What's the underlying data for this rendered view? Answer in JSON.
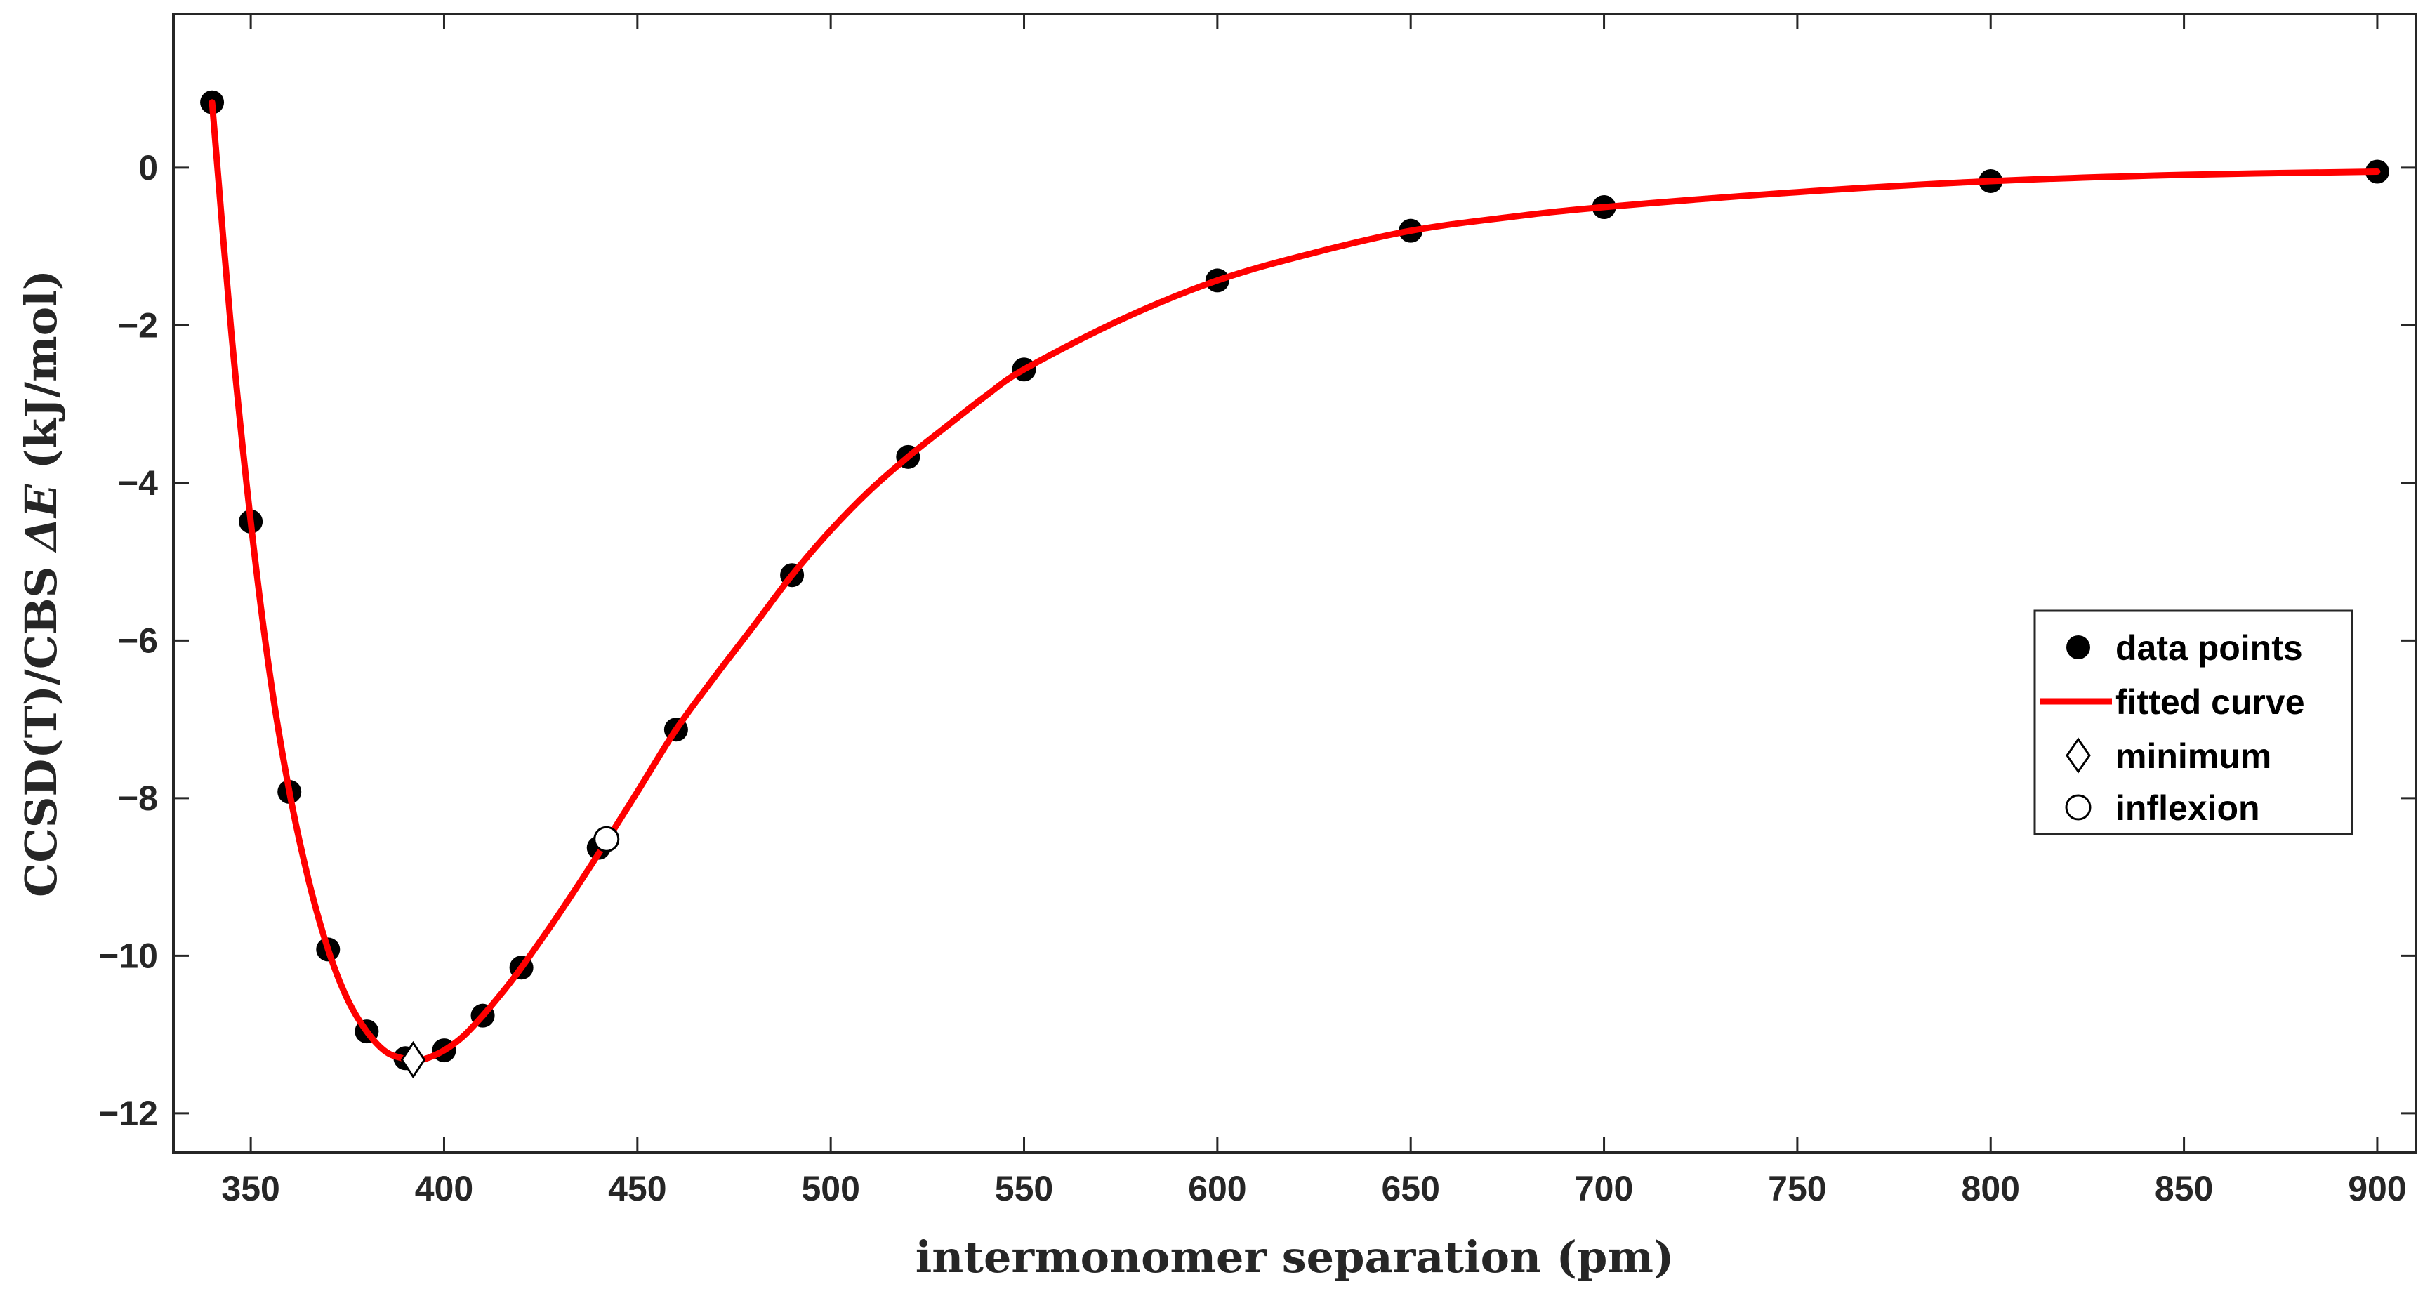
{
  "chart_data": {
    "type": "scatter",
    "xlabel": "intermonomer separation (pm)",
    "ylabel_prefix": "CCSD(T)/CBS ",
    "ylabel_symbol": "ΔE",
    "ylabel_suffix": " (kJ/mol)",
    "xlim": [
      330,
      910
    ],
    "ylim": [
      -12.5,
      1.95
    ],
    "xticks": [
      350,
      400,
      450,
      500,
      550,
      600,
      650,
      700,
      750,
      800,
      850,
      900
    ],
    "yticks": [
      0,
      -2,
      -4,
      -6,
      -8,
      -10,
      -12
    ],
    "xtick_labels": [
      "350",
      "400",
      "450",
      "500",
      "550",
      "600",
      "650",
      "700",
      "750",
      "800",
      "850",
      "900"
    ],
    "ytick_labels": [
      "0",
      "−2",
      "−4",
      "−6",
      "−8",
      "−10",
      "−12"
    ],
    "grid": false,
    "legend_position": "right",
    "legend": [
      {
        "label": "data points",
        "marker": "filled-circle"
      },
      {
        "label": "fitted curve",
        "marker": "line"
      },
      {
        "label": "minimum",
        "marker": "diamond"
      },
      {
        "label": "inflexion",
        "marker": "open-circle"
      }
    ],
    "series": [
      {
        "name": "data points",
        "color": "#000000",
        "x": [
          340,
          350,
          360,
          370,
          380,
          390,
          400,
          410,
          420,
          440,
          460,
          490,
          520,
          550,
          600,
          650,
          700,
          800,
          900
        ],
        "y": [
          0.83,
          -4.49,
          -7.92,
          -9.92,
          -10.96,
          -11.3,
          -11.2,
          -10.76,
          -10.15,
          -8.63,
          -7.13,
          -5.17,
          -3.67,
          -2.56,
          -1.43,
          -0.8,
          -0.5,
          -0.17,
          -0.05
        ]
      },
      {
        "name": "fitted curve",
        "color": "#ff0000",
        "x": [
          340,
          345,
          350,
          355,
          360,
          365,
          370,
          375,
          380,
          385,
          390,
          392,
          395,
          400,
          405,
          410,
          415,
          420,
          430,
          440,
          450,
          460,
          470,
          480,
          490,
          500,
          510,
          520,
          530,
          540,
          550,
          575,
          600,
          625,
          650,
          675,
          700,
          750,
          800,
          850,
          900
        ],
        "y": [
          0.83,
          -2.1,
          -4.49,
          -6.45,
          -7.92,
          -9.05,
          -9.92,
          -10.55,
          -10.96,
          -11.22,
          -11.31,
          -11.32,
          -11.31,
          -11.2,
          -11.02,
          -10.76,
          -10.47,
          -10.15,
          -9.45,
          -8.7,
          -7.92,
          -7.13,
          -6.46,
          -5.82,
          -5.17,
          -4.6,
          -4.1,
          -3.67,
          -3.28,
          -2.9,
          -2.56,
          -1.93,
          -1.43,
          -1.08,
          -0.8,
          -0.63,
          -0.5,
          -0.31,
          -0.17,
          -0.09,
          -0.05
        ]
      },
      {
        "name": "minimum",
        "marker": "diamond",
        "x": [
          392
        ],
        "y": [
          -11.32
        ]
      },
      {
        "name": "inflexion",
        "marker": "open-circle",
        "x": [
          442
        ],
        "y": [
          -8.52
        ]
      }
    ]
  }
}
